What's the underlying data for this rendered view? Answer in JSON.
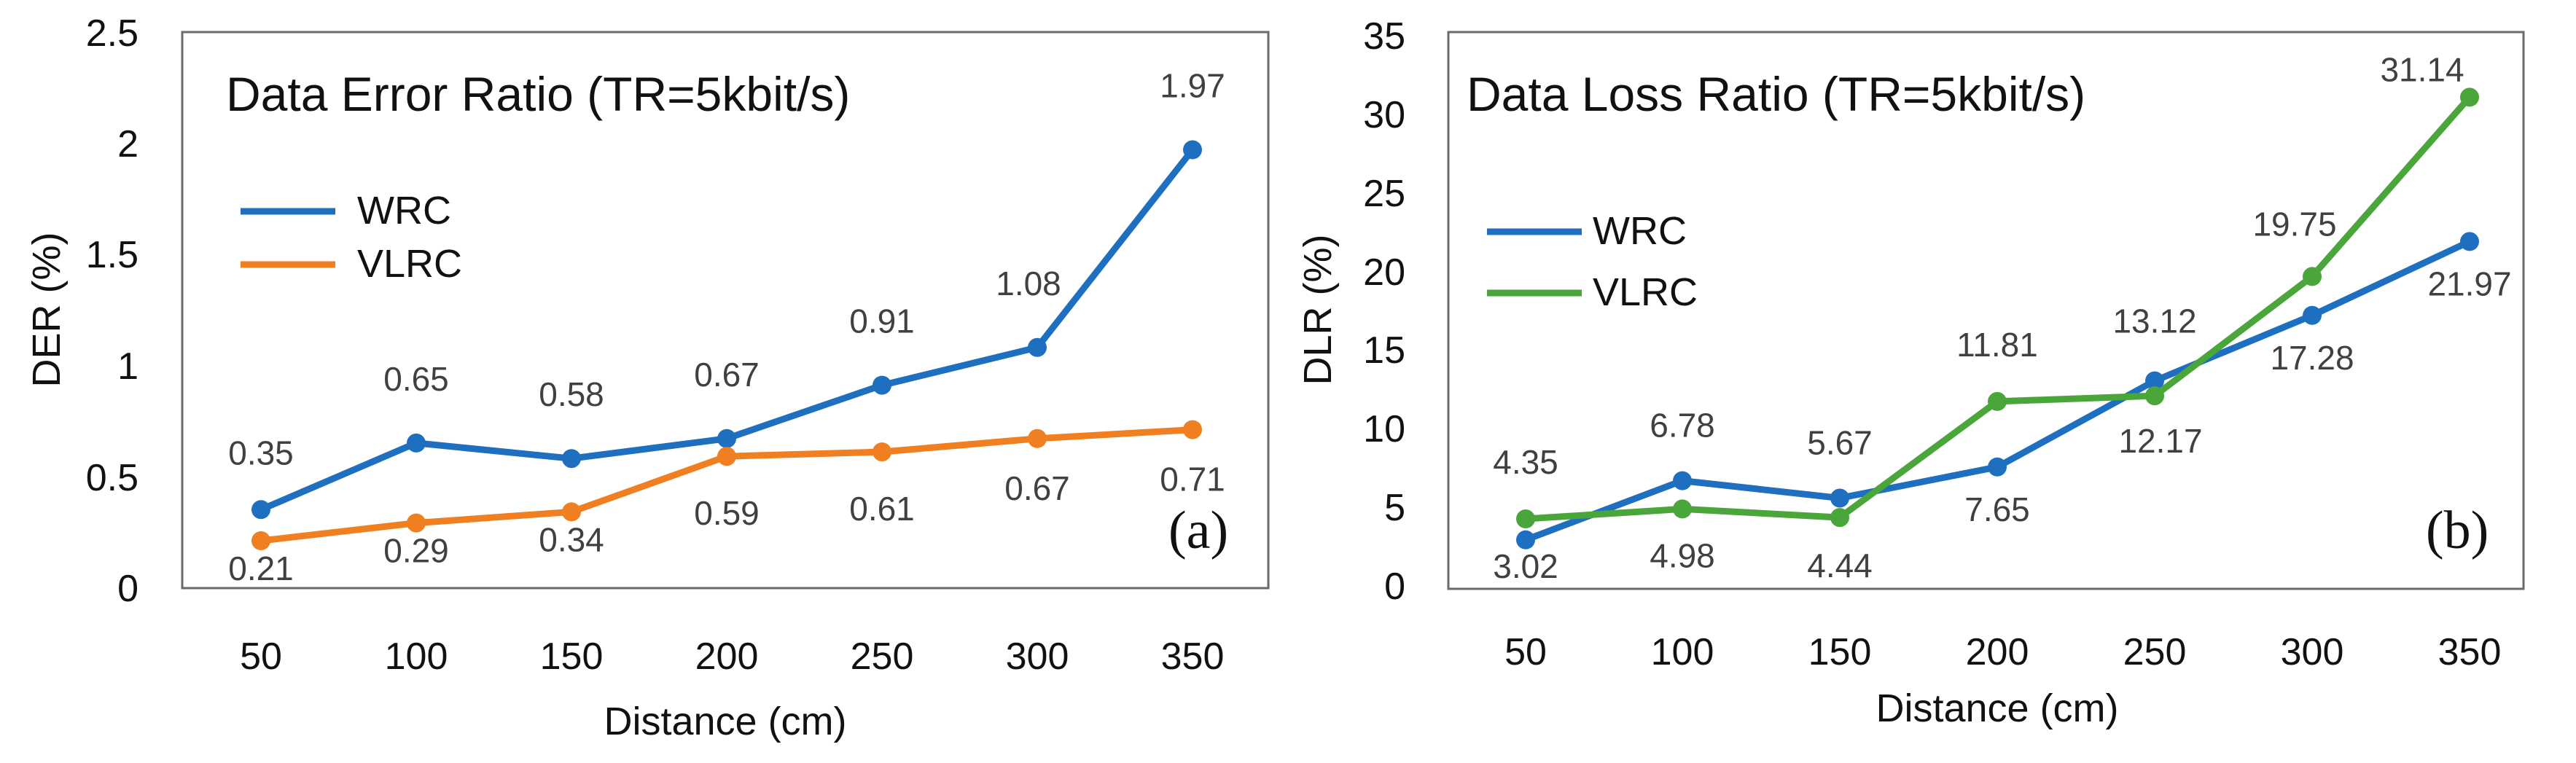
{
  "chart_data": [
    {
      "type": "line",
      "title": "Data Error Ratio (TR=5kbit/s)",
      "panel_label": "(a)",
      "xlabel": "Distance (cm)",
      "ylabel": "DER (%)",
      "categories": [
        "50",
        "100",
        "150",
        "200",
        "250",
        "300",
        "350"
      ],
      "y_ticks": [
        "0",
        "0.5",
        "1",
        "1.5",
        "2",
        "2.5"
      ],
      "ylim": [
        0,
        2.5
      ],
      "legend_position": "upper-left",
      "series": [
        {
          "name": "WRC",
          "color": "#1f6fc0",
          "values": [
            0.35,
            0.65,
            0.58,
            0.67,
            0.91,
            1.08,
            1.97
          ],
          "labels": [
            "0.35",
            "0.65",
            "0.58",
            "0.67",
            "0.91",
            "1.08",
            "1.97"
          ]
        },
        {
          "name": "VLRC",
          "color": "#f07f21",
          "values": [
            0.21,
            0.29,
            0.34,
            0.59,
            0.61,
            0.67,
            0.71
          ],
          "labels": [
            "0.21",
            "0.29",
            "0.34",
            "0.59",
            "0.61",
            "0.67",
            "0.71"
          ]
        }
      ]
    },
    {
      "type": "line",
      "title": "Data Loss Ratio (TR=5kbit/s)",
      "panel_label": "(b)",
      "xlabel": "Distance (cm)",
      "ylabel": "DLR (%)",
      "categories": [
        "50",
        "100",
        "150",
        "200",
        "250",
        "300",
        "350"
      ],
      "y_ticks": [
        "0",
        "5",
        "10",
        "15",
        "20",
        "25",
        "30",
        "35"
      ],
      "ylim": [
        0,
        35
      ],
      "legend_position": "upper-left",
      "series": [
        {
          "name": "WRC",
          "color": "#1f6fc0",
          "values": [
            3.02,
            6.78,
            5.67,
            7.65,
            13.12,
            17.28,
            21.97
          ],
          "labels": [
            "3.02",
            "6.78",
            "5.67",
            "7.65",
            "13.12",
            "17.28",
            "21.97"
          ]
        },
        {
          "name": "VLRC",
          "color": "#4aa63a",
          "values": [
            4.35,
            4.98,
            4.44,
            11.81,
            12.17,
            19.75,
            31.14
          ],
          "labels": [
            "4.35",
            "4.98",
            "4.44",
            "11.81",
            "12.17",
            "19.75",
            "31.14"
          ]
        }
      ]
    }
  ]
}
